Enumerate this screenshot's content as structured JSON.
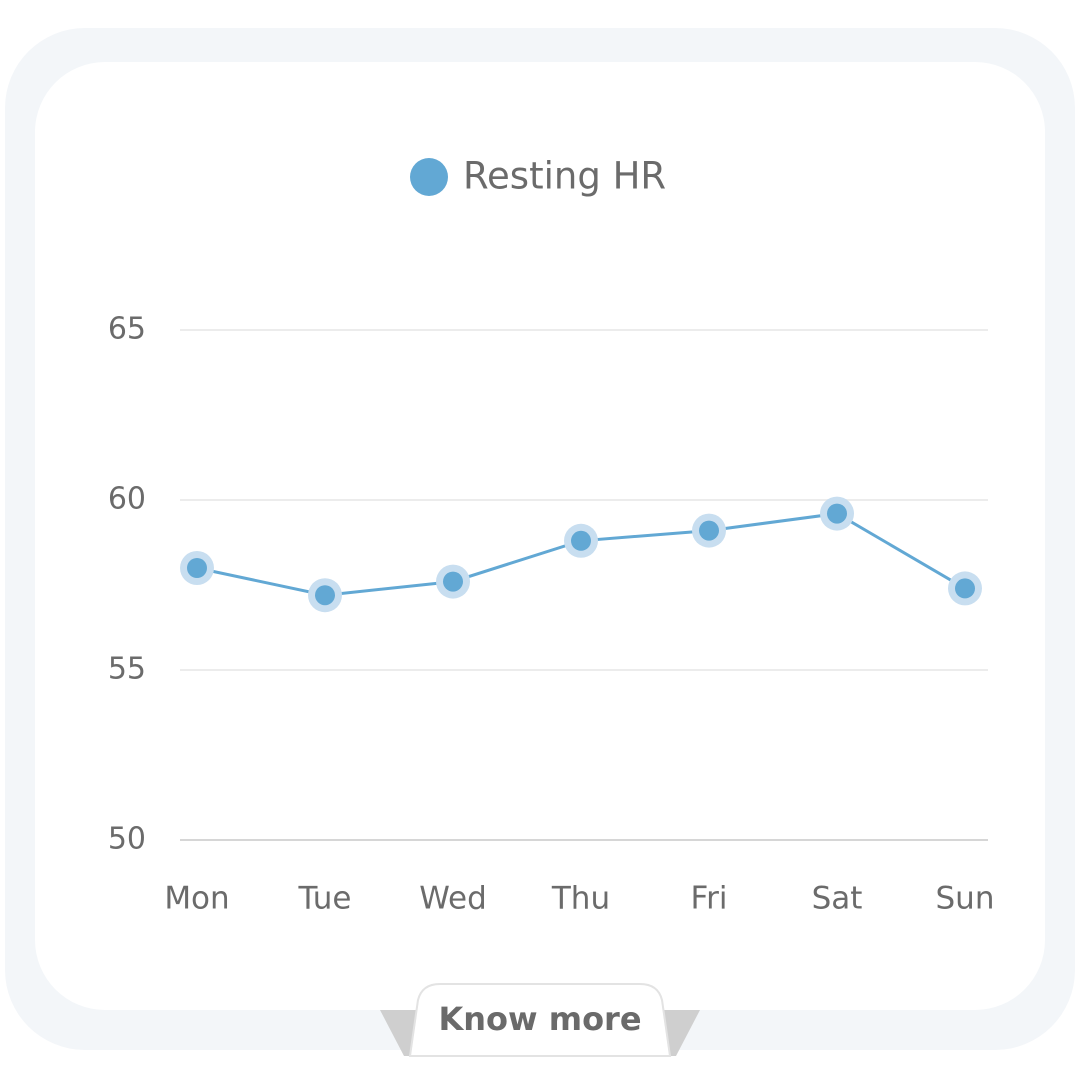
{
  "chart_data": {
    "type": "line",
    "categories": [
      "Mon",
      "Tue",
      "Wed",
      "Thu",
      "Fri",
      "Sat",
      "Sun"
    ],
    "series": [
      {
        "name": "Resting HR",
        "color": "#62a8d4",
        "values": [
          58.0,
          57.2,
          57.6,
          58.8,
          59.1,
          59.6,
          57.4
        ]
      }
    ],
    "ylim": [
      50,
      65
    ],
    "yticks": [
      50,
      55,
      60,
      65
    ],
    "grid": true
  },
  "button": "Know more"
}
